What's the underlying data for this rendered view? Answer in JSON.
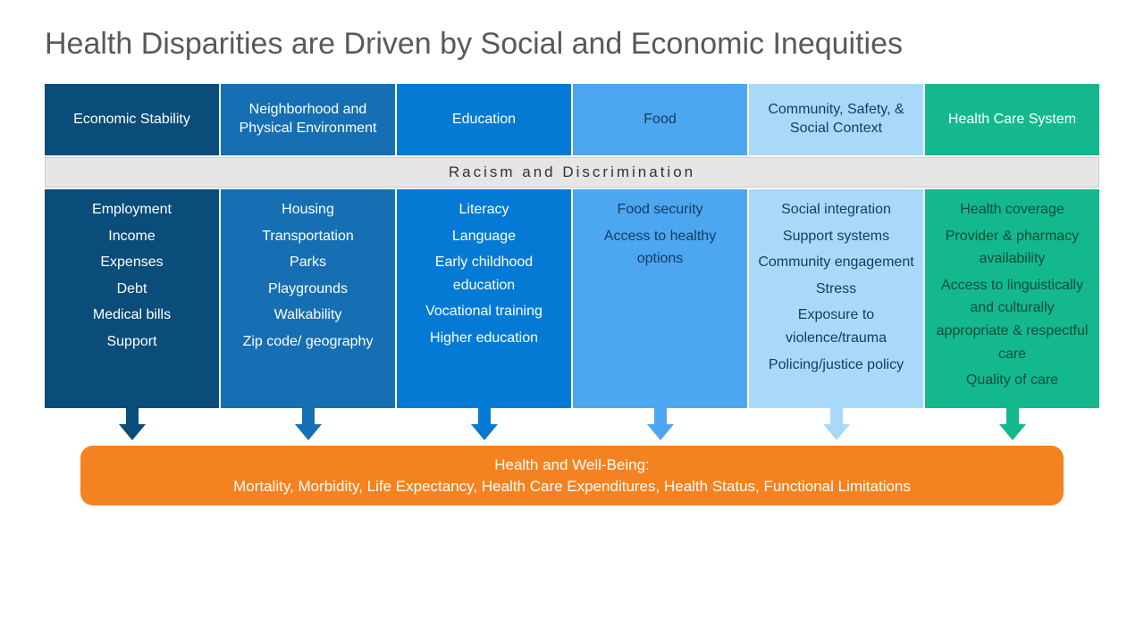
{
  "title": "Health Disparities are Driven by Social and Economic Inequities",
  "banner": "Racism and Discrimination",
  "columns": [
    {
      "header": "Economic Stability",
      "bg": "#0a4d7a",
      "text": "#ffffff",
      "items": [
        "Employment",
        "Income",
        "Expenses",
        "Debt",
        "Medical bills",
        "Support"
      ]
    },
    {
      "header": "Neighborhood and Physical Environment",
      "bg": "#166fb3",
      "text": "#ffffff",
      "items": [
        "Housing",
        "Transportation",
        "Parks",
        "Playgrounds",
        "Walkability",
        "Zip code/ geography"
      ]
    },
    {
      "header": "Education",
      "bg": "#057ad4",
      "text": "#ffffff",
      "items": [
        "Literacy",
        "Language",
        "Early childhood education",
        "Vocational training",
        "Higher education"
      ]
    },
    {
      "header": "Food",
      "bg": "#4da6f0",
      "text": "#133c5e",
      "items": [
        "Food security",
        "Access to healthy options"
      ]
    },
    {
      "header": "Community, Safety, & Social Context",
      "bg": "#a9d9f9",
      "text": "#133c5e",
      "items": [
        "Social integration",
        "Support systems",
        "Community engagement",
        "Stress",
        "Exposure to violence/trauma",
        "Policing/justice policy"
      ]
    },
    {
      "header": "Health Care System",
      "bg": "#14b88e",
      "text": "#0a4d3c",
      "header_text": "#ffffff",
      "items": [
        "Health coverage",
        "Provider & pharmacy availability",
        "Access to linguistically and culturally appropriate & respectful care",
        "Quality of care"
      ]
    }
  ],
  "outcome": {
    "line1": "Health and Well-Being:",
    "line2": "Mortality, Morbidity, Life Expectancy, Health Care Expenditures, Health Status, Functional Limitations",
    "bg": "#f58220"
  }
}
